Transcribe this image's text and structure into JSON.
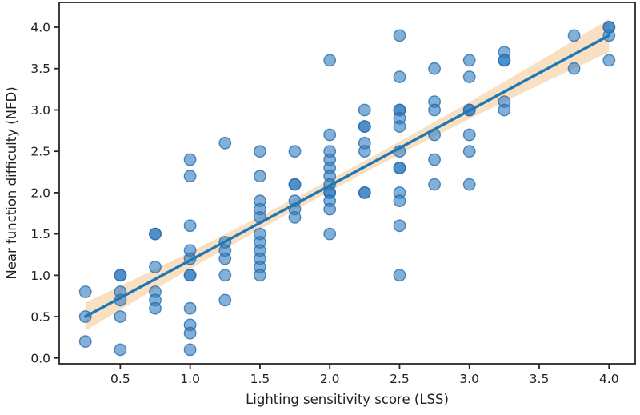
{
  "chart_data": {
    "type": "scatter",
    "subtype": "scatter-with-regression",
    "title": "",
    "xlabel": "Lighting sensitivity score (LSS)",
    "ylabel": "Near function difficulty (NFD)",
    "xlim": [
      0.0625,
      4.1875
    ],
    "ylim": [
      -0.07,
      4.3
    ],
    "x_ticks": [
      0.5,
      1.0,
      1.5,
      2.0,
      2.5,
      3.0,
      3.5,
      4.0
    ],
    "y_ticks": [
      0.0,
      0.5,
      1.0,
      1.5,
      2.0,
      2.5,
      3.0,
      3.5,
      4.0
    ],
    "grid": false,
    "legend_position": "none",
    "points": [
      [
        0.25,
        0.8
      ],
      [
        0.25,
        0.5
      ],
      [
        0.25,
        0.2
      ],
      [
        0.5,
        1.0
      ],
      [
        0.5,
        1.0
      ],
      [
        0.5,
        0.8
      ],
      [
        0.5,
        0.7
      ],
      [
        0.5,
        0.5
      ],
      [
        0.5,
        0.1
      ],
      [
        0.75,
        1.5
      ],
      [
        0.75,
        1.5
      ],
      [
        0.75,
        1.1
      ],
      [
        0.75,
        0.8
      ],
      [
        0.75,
        0.7
      ],
      [
        0.75,
        0.6
      ],
      [
        1.0,
        2.4
      ],
      [
        1.0,
        2.2
      ],
      [
        1.0,
        1.6
      ],
      [
        1.0,
        1.3
      ],
      [
        1.0,
        1.2
      ],
      [
        1.0,
        1.0
      ],
      [
        1.0,
        1.0
      ],
      [
        1.0,
        0.6
      ],
      [
        1.0,
        0.4
      ],
      [
        1.0,
        0.3
      ],
      [
        1.0,
        0.1
      ],
      [
        1.25,
        2.6
      ],
      [
        1.25,
        1.4
      ],
      [
        1.25,
        1.3
      ],
      [
        1.25,
        1.2
      ],
      [
        1.25,
        1.0
      ],
      [
        1.25,
        0.7
      ],
      [
        1.5,
        2.5
      ],
      [
        1.5,
        2.2
      ],
      [
        1.5,
        1.9
      ],
      [
        1.5,
        1.8
      ],
      [
        1.5,
        1.7
      ],
      [
        1.5,
        1.5
      ],
      [
        1.5,
        1.4
      ],
      [
        1.5,
        1.3
      ],
      [
        1.5,
        1.2
      ],
      [
        1.5,
        1.1
      ],
      [
        1.5,
        1.0
      ],
      [
        1.75,
        2.5
      ],
      [
        1.75,
        2.1
      ],
      [
        1.75,
        2.1
      ],
      [
        1.75,
        1.9
      ],
      [
        1.75,
        1.8
      ],
      [
        1.75,
        1.7
      ],
      [
        2.0,
        3.6
      ],
      [
        2.0,
        2.7
      ],
      [
        2.0,
        2.5
      ],
      [
        2.0,
        2.4
      ],
      [
        2.0,
        2.3
      ],
      [
        2.0,
        2.2
      ],
      [
        2.0,
        2.1
      ],
      [
        2.0,
        2.0
      ],
      [
        2.0,
        2.0
      ],
      [
        2.0,
        1.9
      ],
      [
        2.0,
        1.8
      ],
      [
        2.0,
        1.5
      ],
      [
        2.25,
        3.0
      ],
      [
        2.25,
        2.8
      ],
      [
        2.25,
        2.8
      ],
      [
        2.25,
        2.6
      ],
      [
        2.25,
        2.5
      ],
      [
        2.25,
        2.0
      ],
      [
        2.25,
        2.0
      ],
      [
        2.5,
        3.9
      ],
      [
        2.5,
        3.4
      ],
      [
        2.5,
        3.0
      ],
      [
        2.5,
        3.0
      ],
      [
        2.5,
        2.9
      ],
      [
        2.5,
        2.8
      ],
      [
        2.5,
        2.5
      ],
      [
        2.5,
        2.3
      ],
      [
        2.5,
        2.3
      ],
      [
        2.5,
        2.0
      ],
      [
        2.5,
        1.9
      ],
      [
        2.5,
        1.6
      ],
      [
        2.5,
        1.0
      ],
      [
        2.75,
        3.5
      ],
      [
        2.75,
        3.1
      ],
      [
        2.75,
        3.0
      ],
      [
        2.75,
        2.7
      ],
      [
        2.75,
        2.4
      ],
      [
        2.75,
        2.1
      ],
      [
        3.0,
        3.6
      ],
      [
        3.0,
        3.4
      ],
      [
        3.0,
        3.0
      ],
      [
        3.0,
        3.0
      ],
      [
        3.0,
        2.7
      ],
      [
        3.0,
        2.5
      ],
      [
        3.0,
        2.1
      ],
      [
        3.25,
        3.7
      ],
      [
        3.25,
        3.6
      ],
      [
        3.25,
        3.6
      ],
      [
        3.25,
        3.1
      ],
      [
        3.25,
        3.0
      ],
      [
        3.75,
        3.9
      ],
      [
        3.75,
        3.5
      ],
      [
        4.0,
        4.0
      ],
      [
        4.0,
        4.0
      ],
      [
        4.0,
        3.9
      ],
      [
        4.0,
        3.6
      ]
    ],
    "regression_line": {
      "x": [
        0.25,
        4.0
      ],
      "y": [
        0.5,
        3.9
      ]
    },
    "ci_band": {
      "x_range": [
        0.25,
        4.0
      ],
      "half_width_center": 0.07,
      "half_width_ends": 0.17,
      "center_x": 2.0
    },
    "colors": {
      "point_fill": "#2e7bbf",
      "point_edge": "#2268a8",
      "line": "#1f77b4",
      "band": "#f8ddbd",
      "axis": "#262626"
    }
  }
}
